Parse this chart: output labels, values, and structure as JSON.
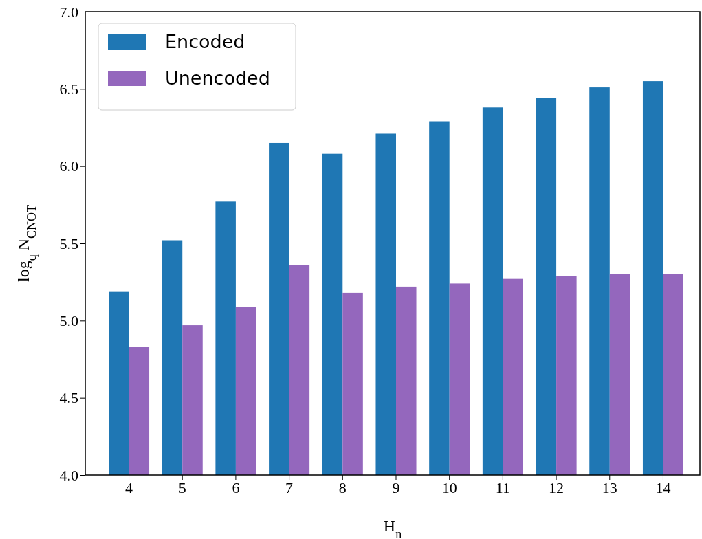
{
  "chart_data": {
    "type": "bar",
    "xlabel": "H$_{n}$",
    "ylabel": "log$_{q}$  N$_{CNOT}$",
    "categories": [
      "4",
      "5",
      "6",
      "7",
      "8",
      "9",
      "10",
      "11",
      "12",
      "13",
      "14"
    ],
    "series": [
      {
        "name": "Encoded",
        "color": "#1f77b4",
        "values": [
          5.19,
          5.52,
          5.77,
          6.15,
          6.08,
          6.21,
          6.29,
          6.38,
          6.44,
          6.51,
          6.55
        ]
      },
      {
        "name": "Unencoded",
        "color": "#9467bd",
        "values": [
          4.83,
          4.97,
          5.09,
          5.36,
          5.18,
          5.22,
          5.24,
          5.27,
          5.29,
          5.3,
          5.3
        ]
      }
    ],
    "ylim": [
      4.0,
      7.0
    ],
    "yticks": [
      {
        "value": 4,
        "label": "4.0"
      },
      {
        "value": 4.5,
        "label": "4.5"
      },
      {
        "value": 5,
        "label": "5.0"
      },
      {
        "value": 5.5,
        "label": "5.5"
      },
      {
        "value": 6,
        "label": "6.0"
      },
      {
        "value": 6.5,
        "label": "6.5"
      },
      {
        "value": 7,
        "label": "7.0"
      }
    ],
    "grid": false,
    "legend": "top left"
  }
}
